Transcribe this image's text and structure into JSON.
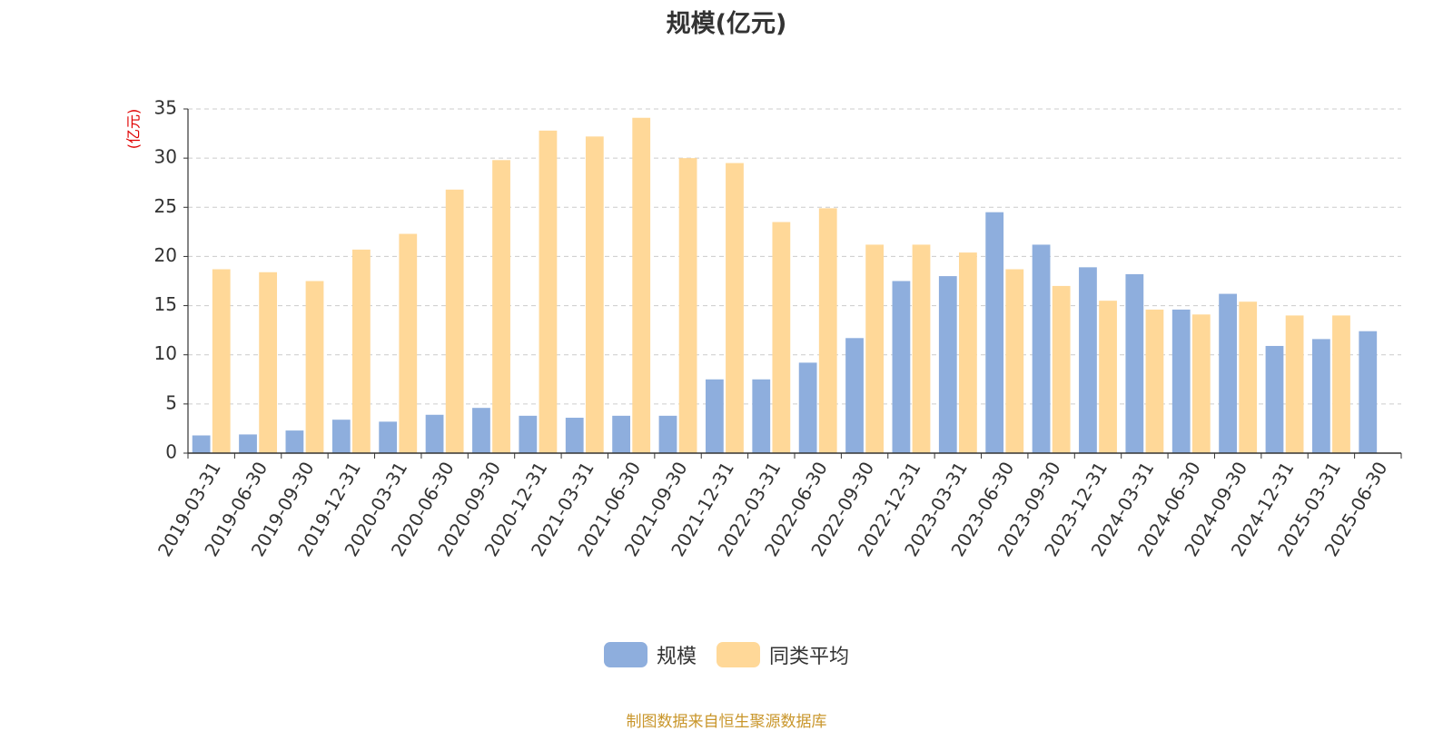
{
  "chart_data": {
    "type": "bar",
    "title": "规模(亿元)",
    "ylabel": "(亿元)",
    "ylim": [
      0,
      35
    ],
    "yticks": [
      0,
      5,
      10,
      15,
      20,
      25,
      30,
      35
    ],
    "grid": true,
    "legend_position": "bottom",
    "categories": [
      "2019-03-31",
      "2019-06-30",
      "2019-09-30",
      "2019-12-31",
      "2020-03-31",
      "2020-06-30",
      "2020-09-30",
      "2020-12-31",
      "2021-03-31",
      "2021-06-30",
      "2021-09-30",
      "2021-12-31",
      "2022-03-31",
      "2022-06-30",
      "2022-09-30",
      "2022-12-31",
      "2023-03-31",
      "2023-06-30",
      "2023-09-30",
      "2023-12-31",
      "2024-03-31",
      "2024-06-30",
      "2024-09-30",
      "2024-12-31",
      "2025-03-31",
      "2025-06-30"
    ],
    "series": [
      {
        "name": "规模",
        "color": "#8eaedd",
        "values": [
          1.8,
          1.9,
          2.3,
          3.4,
          3.2,
          3.9,
          4.6,
          3.8,
          3.6,
          3.8,
          3.8,
          7.5,
          7.5,
          9.2,
          11.7,
          17.5,
          18.0,
          24.5,
          21.2,
          18.9,
          18.2,
          14.6,
          16.2,
          10.9,
          11.6,
          12.4
        ]
      },
      {
        "name": "同类平均",
        "color": "#ffd898",
        "values": [
          18.7,
          18.4,
          17.5,
          20.7,
          22.3,
          26.8,
          29.8,
          32.8,
          32.2,
          34.1,
          30.0,
          29.5,
          23.5,
          24.9,
          21.2,
          21.2,
          20.4,
          18.7,
          17.0,
          15.5,
          14.6,
          14.1,
          15.4,
          14.0,
          14.0,
          null
        ]
      }
    ]
  },
  "source_note": "制图数据来自恒生聚源数据库"
}
